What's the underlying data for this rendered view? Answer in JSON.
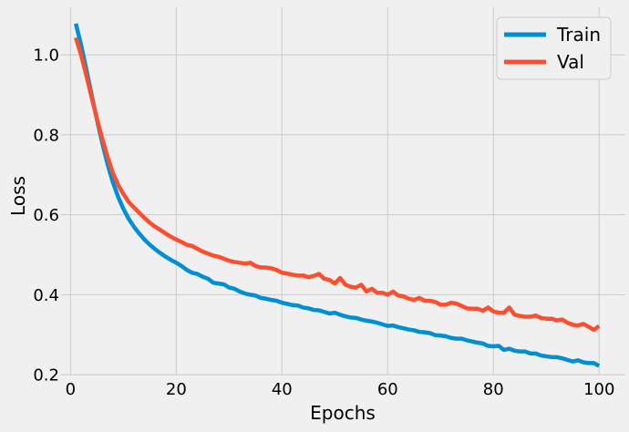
{
  "chart_data": {
    "type": "line",
    "title": "",
    "xlabel": "Epochs",
    "ylabel": "Loss",
    "xlim": [
      -1.96,
      104.96
    ],
    "ylim": [
      0.198,
      1.119
    ],
    "xticks": [
      0,
      20,
      40,
      60,
      80,
      100
    ],
    "yticks": [
      0.2,
      0.4,
      0.6,
      0.8,
      1.0
    ],
    "xtick_labels": [
      "0",
      "20",
      "40",
      "60",
      "80",
      "100"
    ],
    "ytick_labels": [
      "0.2",
      "0.4",
      "0.6",
      "0.8",
      "1.0"
    ],
    "grid": true,
    "legend_position": "top-right",
    "x": [
      1,
      2,
      3,
      4,
      5,
      6,
      7,
      8,
      9,
      10,
      11,
      12,
      13,
      14,
      15,
      16,
      17,
      18,
      19,
      20,
      21,
      22,
      23,
      24,
      25,
      26,
      27,
      28,
      29,
      30,
      31,
      32,
      33,
      34,
      35,
      36,
      37,
      38,
      39,
      40,
      41,
      42,
      43,
      44,
      45,
      46,
      47,
      48,
      49,
      50,
      51,
      52,
      53,
      54,
      55,
      56,
      57,
      58,
      59,
      60,
      61,
      62,
      63,
      64,
      65,
      66,
      67,
      68,
      69,
      70,
      71,
      72,
      73,
      74,
      75,
      76,
      77,
      78,
      79,
      80,
      81,
      82,
      83,
      84,
      85,
      86,
      87,
      88,
      89,
      90,
      91,
      92,
      93,
      94,
      95,
      96,
      97,
      98,
      99,
      100
    ],
    "series": [
      {
        "name": "Train",
        "color": "#008fd5",
        "values": [
          1.078,
          1.025,
          0.963,
          0.9,
          0.838,
          0.78,
          0.727,
          0.682,
          0.645,
          0.615,
          0.59,
          0.57,
          0.553,
          0.538,
          0.525,
          0.514,
          0.504,
          0.495,
          0.487,
          0.48,
          0.472,
          0.462,
          0.455,
          0.452,
          0.445,
          0.44,
          0.43,
          0.428,
          0.426,
          0.418,
          0.415,
          0.408,
          0.403,
          0.4,
          0.398,
          0.392,
          0.39,
          0.387,
          0.385,
          0.38,
          0.377,
          0.374,
          0.373,
          0.368,
          0.366,
          0.362,
          0.361,
          0.357,
          0.353,
          0.355,
          0.35,
          0.346,
          0.343,
          0.342,
          0.338,
          0.335,
          0.333,
          0.33,
          0.326,
          0.322,
          0.323,
          0.319,
          0.316,
          0.313,
          0.311,
          0.307,
          0.306,
          0.304,
          0.299,
          0.298,
          0.296,
          0.292,
          0.29,
          0.29,
          0.286,
          0.283,
          0.28,
          0.278,
          0.272,
          0.271,
          0.272,
          0.262,
          0.265,
          0.26,
          0.258,
          0.258,
          0.253,
          0.253,
          0.248,
          0.246,
          0.244,
          0.244,
          0.241,
          0.237,
          0.233,
          0.236,
          0.231,
          0.229,
          0.229,
          0.222
        ]
      },
      {
        "name": "Val",
        "color": "#fc4f30",
        "values": [
          1.043,
          1.0,
          0.948,
          0.893,
          0.84,
          0.79,
          0.745,
          0.705,
          0.675,
          0.652,
          0.632,
          0.618,
          0.605,
          0.592,
          0.58,
          0.57,
          0.562,
          0.553,
          0.545,
          0.538,
          0.532,
          0.525,
          0.522,
          0.515,
          0.508,
          0.503,
          0.498,
          0.495,
          0.49,
          0.485,
          0.482,
          0.48,
          0.478,
          0.48,
          0.472,
          0.468,
          0.468,
          0.466,
          0.462,
          0.455,
          0.453,
          0.45,
          0.448,
          0.448,
          0.444,
          0.447,
          0.452,
          0.44,
          0.437,
          0.428,
          0.442,
          0.425,
          0.42,
          0.418,
          0.425,
          0.408,
          0.415,
          0.405,
          0.405,
          0.4,
          0.408,
          0.398,
          0.396,
          0.39,
          0.387,
          0.392,
          0.385,
          0.385,
          0.382,
          0.375,
          0.375,
          0.38,
          0.378,
          0.372,
          0.366,
          0.365,
          0.365,
          0.36,
          0.368,
          0.358,
          0.355,
          0.355,
          0.368,
          0.35,
          0.347,
          0.345,
          0.345,
          0.348,
          0.342,
          0.34,
          0.34,
          0.336,
          0.338,
          0.33,
          0.325,
          0.323,
          0.327,
          0.32,
          0.312,
          0.322
        ]
      }
    ]
  }
}
